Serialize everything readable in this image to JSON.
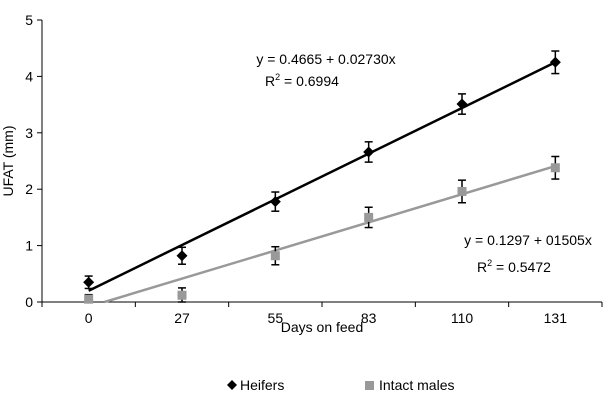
{
  "chart_data": {
    "type": "scatter",
    "xlabel": "Days on feed",
    "ylabel": "UFAT (mm)",
    "categories": [
      "0",
      "27",
      "55",
      "83",
      "110",
      "131"
    ],
    "ylim": [
      0,
      5
    ],
    "yticks": [
      "0",
      "1",
      "2",
      "3",
      "4",
      "5"
    ],
    "grid": false,
    "legend_position": "bottom",
    "series": [
      {
        "name": "Heifers",
        "marker": "diamond",
        "color": "#000000",
        "values": [
          0.35,
          0.82,
          1.78,
          2.66,
          3.51,
          4.25
        ],
        "errors": [
          0.11,
          0.15,
          0.17,
          0.18,
          0.18,
          0.2
        ],
        "trendline": {
          "from_category": 0,
          "to_category": 5,
          "start_y": 0.2,
          "end_y": 4.25
        },
        "equation": "y = 0.4665 + 0.02730x",
        "r2_prefix": "R",
        "r2_exponent": "2",
        "r2_value": " = 0.6994"
      },
      {
        "name": "Intact males",
        "marker": "square",
        "color": "#999999",
        "values": [
          0.05,
          0.12,
          0.82,
          1.5,
          1.96,
          2.38
        ],
        "errors": [
          0.08,
          0.13,
          0.16,
          0.18,
          0.2,
          0.2
        ],
        "trendline": {
          "from_category": 0.17,
          "to_category": 5,
          "start_y": 0.0,
          "end_y": 2.41
        },
        "equation": "y = 0.1297 + 01505x",
        "r2_prefix": "R",
        "r2_exponent": "2",
        "r2_value": " = 0.5472"
      }
    ]
  }
}
